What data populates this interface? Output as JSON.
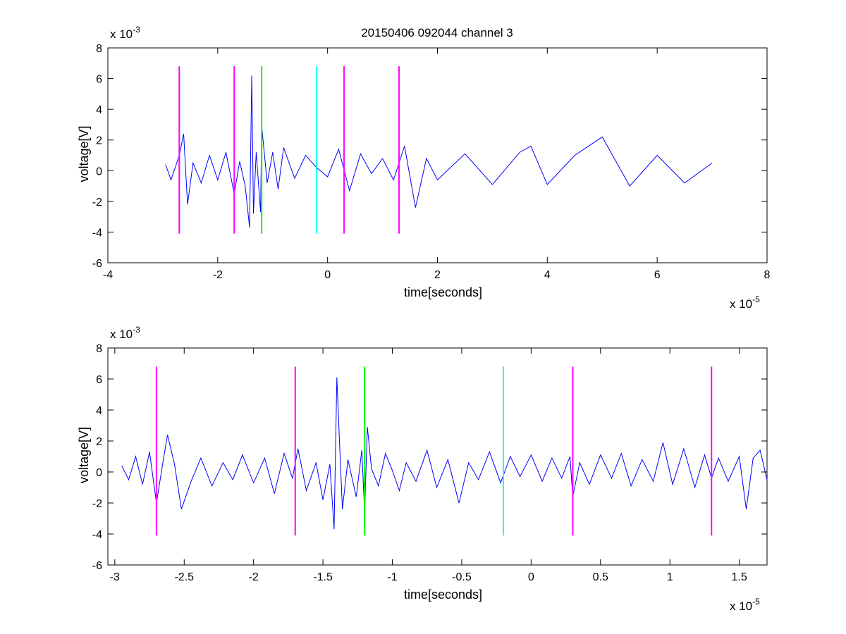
{
  "figure": {
    "title": "20150406 092044 channel 3"
  },
  "colors": {
    "signal": "#0000ff",
    "marker_magenta": "#ff00ff",
    "marker_green": "#00ff00",
    "marker_cyan": "#00ffff",
    "axes": "#000000",
    "background": "#ffffff"
  },
  "chart_data": [
    {
      "type": "line",
      "title": "20150406 092044 channel 3",
      "xlabel": "time[seconds]",
      "ylabel": "voltage[V]",
      "x_exponent": {
        "base": "x 10",
        "power": "-5"
      },
      "y_exponent": {
        "base": "x 10",
        "power": "-3"
      },
      "xlim": [
        -4,
        8
      ],
      "ylim": [
        -6,
        8
      ],
      "xticks": [
        "-4",
        "-2",
        "0",
        "2",
        "4",
        "6",
        "8"
      ],
      "yticks": [
        "-6",
        "-4",
        "-2",
        "0",
        "2",
        "4",
        "6",
        "8"
      ],
      "grid": false,
      "series": [
        {
          "color": "#0000ff",
          "x": [
            -2.95,
            -2.85,
            -2.7,
            -2.62,
            -2.55,
            -2.45,
            -2.3,
            -2.15,
            -2.0,
            -1.85,
            -1.7,
            -1.6,
            -1.5,
            -1.42,
            -1.38,
            -1.35,
            -1.3,
            -1.22,
            -1.2,
            -1.1,
            -1.0,
            -0.9,
            -0.8,
            -0.6,
            -0.4,
            -0.2,
            0.0,
            0.2,
            0.4,
            0.6,
            0.8,
            1.0,
            1.2,
            1.4,
            1.6,
            1.8,
            2.0,
            2.5,
            3.0,
            3.5,
            3.7,
            4.0,
            4.5,
            5.0,
            5.5,
            6.0,
            6.5,
            7.0
          ],
          "y": [
            0.4,
            -0.6,
            1.0,
            2.4,
            -2.2,
            0.5,
            -0.8,
            1.0,
            -0.6,
            1.2,
            -1.5,
            0.6,
            -1.0,
            -3.7,
            6.2,
            -2.8,
            1.2,
            -2.7,
            2.9,
            -0.8,
            1.2,
            -1.2,
            1.5,
            -0.5,
            1.0,
            0.2,
            -0.4,
            1.4,
            -1.3,
            1.1,
            -0.2,
            0.8,
            -0.6,
            1.6,
            -2.4,
            0.8,
            -0.6,
            1.1,
            -0.9,
            1.2,
            1.6,
            -0.9,
            1.0,
            2.2,
            -1.0,
            1.0,
            -0.8,
            0.5
          ]
        }
      ],
      "markers": [
        {
          "x": -2.7,
          "y_from": -4.1,
          "y_to": 6.8,
          "color": "#ff00ff"
        },
        {
          "x": -1.7,
          "y_from": -4.1,
          "y_to": 6.8,
          "color": "#ff00ff"
        },
        {
          "x": -1.2,
          "y_from": -4.1,
          "y_to": 6.8,
          "color": "#00ff00"
        },
        {
          "x": -0.2,
          "y_from": -4.1,
          "y_to": 6.8,
          "color": "#00ffff"
        },
        {
          "x": 0.3,
          "y_from": -4.1,
          "y_to": 6.8,
          "color": "#ff00ff"
        },
        {
          "x": 1.3,
          "y_from": -4.1,
          "y_to": 6.8,
          "color": "#ff00ff"
        }
      ]
    },
    {
      "type": "line",
      "title": "",
      "xlabel": "time[seconds]",
      "ylabel": "voltage[V]",
      "x_exponent": {
        "base": "x 10",
        "power": "-5"
      },
      "y_exponent": {
        "base": "x 10",
        "power": "-3"
      },
      "xlim": [
        -3.05,
        1.7
      ],
      "ylim": [
        -6,
        8
      ],
      "xticks": [
        "-3",
        "-2.5",
        "-2",
        "-1.5",
        "-1",
        "-0.5",
        "0",
        "0.5",
        "1",
        "1.5"
      ],
      "yticks": [
        "-6",
        "-4",
        "-2",
        "0",
        "2",
        "4",
        "6",
        "8"
      ],
      "grid": false,
      "series": [
        {
          "color": "#0000ff",
          "x": [
            -2.95,
            -2.9,
            -2.85,
            -2.8,
            -2.75,
            -2.7,
            -2.65,
            -2.62,
            -2.57,
            -2.52,
            -2.45,
            -2.38,
            -2.3,
            -2.22,
            -2.15,
            -2.08,
            -2.0,
            -1.92,
            -1.85,
            -1.78,
            -1.72,
            -1.68,
            -1.62,
            -1.55,
            -1.5,
            -1.45,
            -1.42,
            -1.4,
            -1.38,
            -1.36,
            -1.32,
            -1.26,
            -1.22,
            -1.2,
            -1.18,
            -1.15,
            -1.1,
            -1.05,
            -1.0,
            -0.95,
            -0.9,
            -0.83,
            -0.75,
            -0.68,
            -0.6,
            -0.52,
            -0.45,
            -0.38,
            -0.3,
            -0.22,
            -0.15,
            -0.08,
            0.0,
            0.08,
            0.15,
            0.22,
            0.28,
            0.3,
            0.35,
            0.42,
            0.5,
            0.58,
            0.65,
            0.72,
            0.8,
            0.88,
            0.95,
            1.02,
            1.1,
            1.18,
            1.25,
            1.3,
            1.35,
            1.42,
            1.5,
            1.55,
            1.6,
            1.65,
            1.7
          ],
          "y": [
            0.4,
            -0.5,
            1.0,
            -0.8,
            1.3,
            -2.0,
            0.8,
            2.4,
            0.5,
            -2.4,
            -0.6,
            0.9,
            -0.9,
            0.6,
            -0.5,
            1.1,
            -0.7,
            0.9,
            -1.4,
            1.2,
            -0.4,
            1.5,
            -1.2,
            0.6,
            -1.8,
            0.5,
            -3.7,
            6.1,
            1.8,
            -2.4,
            0.8,
            -1.6,
            1.4,
            -2.6,
            2.9,
            0.2,
            -0.9,
            1.2,
            0.1,
            -1.2,
            0.6,
            -0.6,
            1.4,
            -1.0,
            0.8,
            -2.0,
            0.6,
            -0.5,
            1.3,
            -0.7,
            1.0,
            -0.3,
            1.1,
            -0.6,
            0.9,
            -0.4,
            1.0,
            -1.6,
            0.6,
            -0.8,
            1.1,
            -0.4,
            1.2,
            -0.9,
            0.8,
            -0.6,
            1.9,
            -0.8,
            1.5,
            -1.0,
            1.1,
            -0.4,
            0.9,
            -0.6,
            1.0,
            -2.4,
            0.9,
            1.4,
            -0.5
          ]
        }
      ],
      "markers": [
        {
          "x": -2.7,
          "y_from": -4.1,
          "y_to": 6.8,
          "color": "#ff00ff"
        },
        {
          "x": -1.7,
          "y_from": -4.1,
          "y_to": 6.8,
          "color": "#ff00ff"
        },
        {
          "x": -1.2,
          "y_from": -4.1,
          "y_to": 6.8,
          "color": "#00ff00"
        },
        {
          "x": -0.2,
          "y_from": -4.1,
          "y_to": 6.8,
          "color": "#00ffff"
        },
        {
          "x": 0.3,
          "y_from": -4.1,
          "y_to": 6.8,
          "color": "#ff00ff"
        },
        {
          "x": 1.3,
          "y_from": -4.1,
          "y_to": 6.8,
          "color": "#ff00ff"
        }
      ]
    }
  ]
}
